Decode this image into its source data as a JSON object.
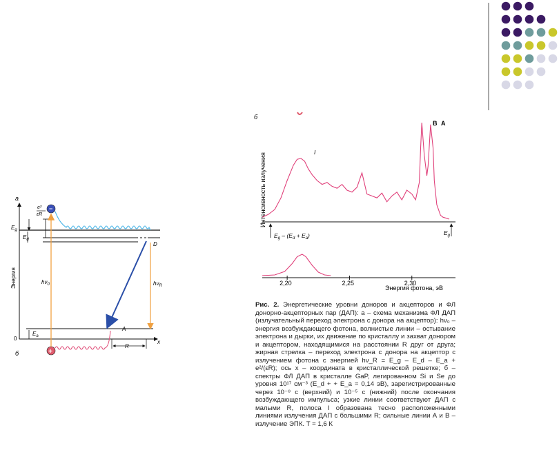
{
  "deco": {
    "colors": [
      "#3b1a63",
      "#6f9c9c",
      "#c9c72b",
      "#d8d8e6"
    ]
  },
  "left_diagram": {
    "panel": "а",
    "panel_b": "б",
    "y_axis": "Энергия",
    "y_zero": "0",
    "x_axis": "x",
    "eg": "E",
    "eg_sub": "g",
    "ed": "E",
    "ed_sub": "d",
    "ea": "E",
    "ea_sub": "a",
    "coulomb_num": "e²",
    "coulomb_den": "εR",
    "hv0": "hν",
    "hv0_sub": "0",
    "hvr": "hν",
    "hvr_sub": "R",
    "level_d": "D",
    "level_a": "A",
    "distance_r": "R",
    "electron": "−",
    "hole": "+"
  },
  "right_chart": {
    "panel": "б",
    "ylabel": "Интенсивность излучения",
    "xlabel": "Энергия фотона, эВ",
    "peak_i": "I",
    "peak_b": "B",
    "peak_a": "A",
    "marker_left": "E",
    "marker_left_sub": "g",
    "marker_left_tail": " – (E",
    "marker_left_sub2": "d",
    "marker_left_tail2": " + E",
    "marker_left_sub3": "a",
    "marker_left_end": ")",
    "marker_right": "E",
    "marker_right_sub": "g"
  },
  "chart_data": {
    "type": "line",
    "xlabel": "Энергия фотона, эВ",
    "ylabel": "Интенсивность излучения",
    "x_ticks": [
      "2,20",
      "2,25",
      "2,30"
    ],
    "xlim": [
      2.18,
      2.335
    ],
    "series": [
      {
        "x": [
          2.18,
          2.185,
          2.19,
          2.195,
          2.2,
          2.205,
          2.208,
          2.211,
          2.214,
          2.217,
          2.22,
          2.224,
          2.228,
          2.232,
          2.236,
          2.24,
          2.244,
          2.248,
          2.252,
          2.256,
          2.26,
          2.264,
          2.268,
          2.272,
          2.276,
          2.28,
          2.284,
          2.288,
          2.292,
          2.296,
          2.3,
          2.303,
          2.306,
          2.307,
          2.308,
          2.31,
          2.312,
          2.313,
          2.315,
          2.317,
          2.318,
          2.32,
          2.323,
          2.325,
          2.33
        ],
        "values": [
          0.02,
          0.05,
          0.1,
          0.22,
          0.4,
          0.56,
          0.62,
          0.63,
          0.6,
          0.52,
          0.46,
          0.4,
          0.36,
          0.38,
          0.34,
          0.32,
          0.36,
          0.3,
          0.28,
          0.33,
          0.48,
          0.26,
          0.24,
          0.22,
          0.27,
          0.18,
          0.24,
          0.28,
          0.2,
          0.3,
          0.26,
          0.2,
          0.38,
          0.72,
          1.0,
          0.66,
          0.45,
          0.55,
          0.98,
          0.74,
          0.4,
          0.15,
          0.04,
          0.02,
          0.0
        ]
      },
      {
        "x": [
          2.18,
          2.19,
          2.198,
          2.204,
          2.208,
          2.212,
          2.215,
          2.22,
          2.225,
          2.23,
          2.235
        ],
        "values": [
          0.0,
          0.02,
          0.12,
          0.35,
          0.55,
          0.62,
          0.55,
          0.3,
          0.1,
          0.02,
          0.0
        ]
      }
    ]
  },
  "caption": {
    "lead": "Рис. 2.",
    "text": " Энергетические уровни доноров и акцепторов и ФЛ донорно-акцепторных пар (ДАП): а – схема механизма ФЛ ДАП (излучательный переход электрона с донора на акцептор): hν₀ – энергия возбуждающего фотона, волнистые линии – остывание электрона и дырки, их движение по кристаллу и захват донором и акцептором, находящимися на расстоянии R друг от друга; жирная стрелка – переход электрона с донора на акцептор с излучением фотона с энергией hν_R = E_g – E_d – E_a + e²/(εR); ось x – координата в кристаллической решетке; б – спектры ФЛ ДАП в кристалле GaP, легированном Si и Se до уровня 10¹⁷ см⁻³ (E_d + + E_a = 0,14 эВ), зарегистрированные через 10⁻⁸ с (верхний) и 10⁻⁵ с (нижний) после окончания возбуждающего импульса; узкие линии соответствуют ДАП с малыми R, полоса I образована тесно расположенными линиями излучения ДАП с большими R; сильные линии А и В – излучение ЭПК. T = 1,6 К"
  }
}
